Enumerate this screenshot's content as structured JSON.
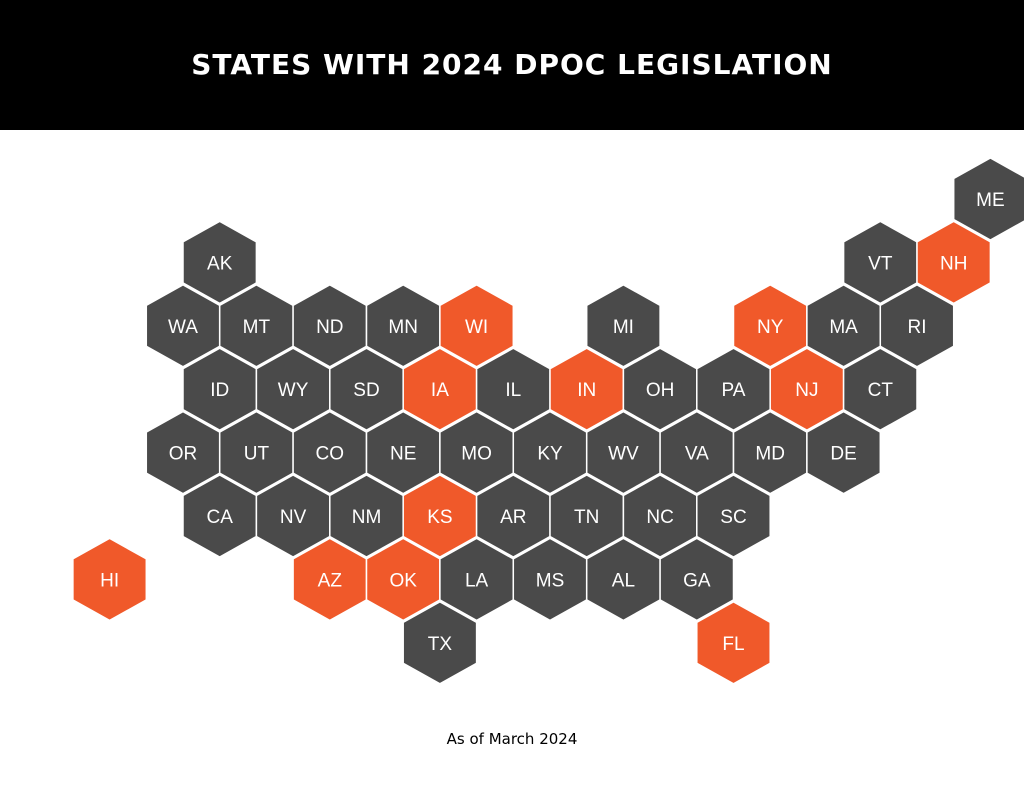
{
  "title": "STATES WITH 2024 DPOC LEGISLATION",
  "footnote": "As of March 2024",
  "colors": {
    "header_bg": "#000000",
    "no_legislation": "#4a4a4a",
    "has_legislation": "#f0592a",
    "hex_stroke": "#ffffff",
    "label": "#ffffff"
  },
  "map": {
    "states": [
      {
        "code": "AK",
        "row": 1,
        "col": 0,
        "has_legislation": false
      },
      {
        "code": "ME",
        "row": 0,
        "col": 11,
        "has_legislation": false
      },
      {
        "code": "VT",
        "row": 1,
        "col": 9,
        "has_legislation": false
      },
      {
        "code": "NH",
        "row": 1,
        "col": 10,
        "has_legislation": true
      },
      {
        "code": "WA",
        "row": 2,
        "col": 0,
        "has_legislation": false
      },
      {
        "code": "MT",
        "row": 2,
        "col": 1,
        "has_legislation": false
      },
      {
        "code": "ND",
        "row": 2,
        "col": 2,
        "has_legislation": false
      },
      {
        "code": "MN",
        "row": 2,
        "col": 3,
        "has_legislation": false
      },
      {
        "code": "WI",
        "row": 2,
        "col": 4,
        "has_legislation": true
      },
      {
        "code": "MI",
        "row": 2,
        "col": 6,
        "has_legislation": false
      },
      {
        "code": "NY",
        "row": 2,
        "col": 8,
        "has_legislation": true
      },
      {
        "code": "MA",
        "row": 2,
        "col": 9,
        "has_legislation": false
      },
      {
        "code": "RI",
        "row": 2,
        "col": 10,
        "has_legislation": false
      },
      {
        "code": "ID",
        "row": 3,
        "col": 0,
        "has_legislation": false
      },
      {
        "code": "WY",
        "row": 3,
        "col": 1,
        "has_legislation": false
      },
      {
        "code": "SD",
        "row": 3,
        "col": 2,
        "has_legislation": false
      },
      {
        "code": "IA",
        "row": 3,
        "col": 3,
        "has_legislation": true
      },
      {
        "code": "IL",
        "row": 3,
        "col": 4,
        "has_legislation": false
      },
      {
        "code": "IN",
        "row": 3,
        "col": 5,
        "has_legislation": true
      },
      {
        "code": "OH",
        "row": 3,
        "col": 6,
        "has_legislation": false
      },
      {
        "code": "PA",
        "row": 3,
        "col": 7,
        "has_legislation": false
      },
      {
        "code": "NJ",
        "row": 3,
        "col": 8,
        "has_legislation": true
      },
      {
        "code": "CT",
        "row": 3,
        "col": 9,
        "has_legislation": false
      },
      {
        "code": "OR",
        "row": 4,
        "col": 0,
        "has_legislation": false
      },
      {
        "code": "UT",
        "row": 4,
        "col": 1,
        "has_legislation": false
      },
      {
        "code": "CO",
        "row": 4,
        "col": 2,
        "has_legislation": false
      },
      {
        "code": "NE",
        "row": 4,
        "col": 3,
        "has_legislation": false
      },
      {
        "code": "MO",
        "row": 4,
        "col": 4,
        "has_legislation": false
      },
      {
        "code": "KY",
        "row": 4,
        "col": 5,
        "has_legislation": false
      },
      {
        "code": "WV",
        "row": 4,
        "col": 6,
        "has_legislation": false
      },
      {
        "code": "VA",
        "row": 4,
        "col": 7,
        "has_legislation": false
      },
      {
        "code": "MD",
        "row": 4,
        "col": 8,
        "has_legislation": false
      },
      {
        "code": "DE",
        "row": 4,
        "col": 9,
        "has_legislation": false
      },
      {
        "code": "CA",
        "row": 5,
        "col": 0,
        "has_legislation": false
      },
      {
        "code": "NV",
        "row": 5,
        "col": 1,
        "has_legislation": false
      },
      {
        "code": "NM",
        "row": 5,
        "col": 2,
        "has_legislation": false
      },
      {
        "code": "KS",
        "row": 5,
        "col": 3,
        "has_legislation": true
      },
      {
        "code": "AR",
        "row": 5,
        "col": 4,
        "has_legislation": false
      },
      {
        "code": "TN",
        "row": 5,
        "col": 5,
        "has_legislation": false
      },
      {
        "code": "NC",
        "row": 5,
        "col": 6,
        "has_legislation": false
      },
      {
        "code": "SC",
        "row": 5,
        "col": 7,
        "has_legislation": false
      },
      {
        "code": "HI",
        "row": 6,
        "col": -1,
        "has_legislation": true
      },
      {
        "code": "AZ",
        "row": 6,
        "col": 2,
        "has_legislation": true
      },
      {
        "code": "OK",
        "row": 6,
        "col": 3,
        "has_legislation": true
      },
      {
        "code": "LA",
        "row": 6,
        "col": 4,
        "has_legislation": false
      },
      {
        "code": "MS",
        "row": 6,
        "col": 5,
        "has_legislation": false
      },
      {
        "code": "AL",
        "row": 6,
        "col": 6,
        "has_legislation": false
      },
      {
        "code": "GA",
        "row": 6,
        "col": 7,
        "has_legislation": false
      },
      {
        "code": "TX",
        "row": 7,
        "col": 3,
        "has_legislation": false
      },
      {
        "code": "FL",
        "row": 7,
        "col": 7,
        "has_legislation": true
      }
    ]
  }
}
